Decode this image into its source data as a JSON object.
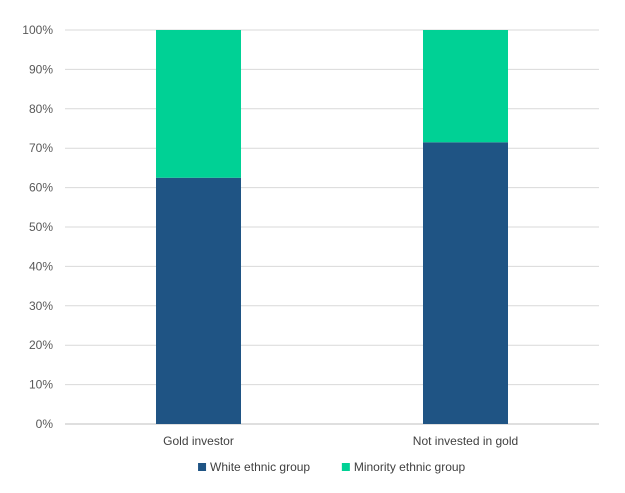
{
  "chart_data": {
    "type": "bar",
    "stacked": true,
    "percent_stacked": true,
    "categories": [
      "Gold investor",
      "Not invested in gold"
    ],
    "series": [
      {
        "name": "White ethnic group",
        "values": [
          62.5,
          71.5
        ],
        "color": "#1f5484"
      },
      {
        "name": "Minority ethnic group",
        "values": [
          37.5,
          28.5
        ],
        "color": "#00d195"
      }
    ],
    "ylim": [
      0,
      100
    ],
    "yticks": [
      "0%",
      "10%",
      "20%",
      "30%",
      "40%",
      "50%",
      "60%",
      "70%",
      "80%",
      "90%",
      "100%"
    ],
    "grid": true,
    "legend_position": "bottom",
    "gridline_color": "#d9d9d9"
  }
}
